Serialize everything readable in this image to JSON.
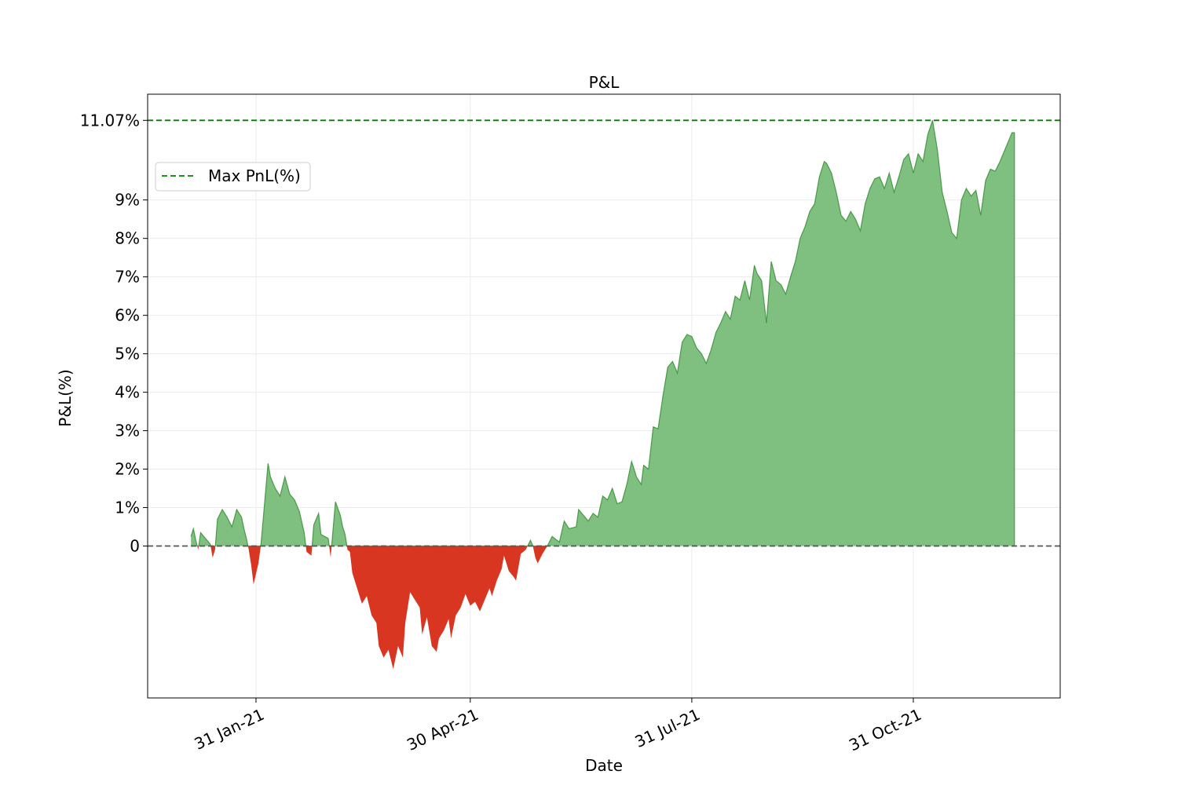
{
  "chart_data": {
    "type": "area",
    "title": "P&L",
    "xlabel": "Date",
    "ylabel": "P&L(%)",
    "x_tick_labels": [
      "31 Jan-21",
      "30 Apr-21",
      "31 Jul-21",
      "31 Oct-21"
    ],
    "x_tick_dates": [
      "2021-01-31",
      "2021-04-30",
      "2021-07-31",
      "2021-10-31"
    ],
    "x_range": [
      "2020-12-17",
      "2021-12-31"
    ],
    "y_tick_labels": [
      "11.07%",
      "9%",
      "8%",
      "7%",
      "6%",
      "5%",
      "4%",
      "3%",
      "2%",
      "1%",
      "0"
    ],
    "y_tick_values": [
      11.07,
      9,
      8,
      7,
      6,
      5,
      4,
      3,
      2,
      1,
      0
    ],
    "ylim": [
      -3.95,
      11.75
    ],
    "grid": true,
    "legend_position": "upper-left",
    "max_pnl": 11.07,
    "baseline": 0,
    "colors": {
      "positive_fill": "#7fbf7f",
      "positive_line": "#2e8b2e",
      "negative_fill": "#d93622",
      "max_line": "#008000",
      "zero_line": "#555555",
      "grid": "#ebebeb"
    },
    "series": [
      {
        "name": "Max PnL(%)",
        "style": "dashed",
        "values": [
          [
            0,
            11.07
          ]
        ]
      },
      {
        "values": [
          [
            "2021-01-04",
            0.25
          ],
          [
            "2021-01-05",
            0.45
          ],
          [
            "2021-01-06",
            0.15
          ],
          [
            "2021-01-07",
            -0.1
          ],
          [
            "2021-01-08",
            0.35
          ],
          [
            "2021-01-10",
            0.2
          ],
          [
            "2021-01-12",
            0.05
          ],
          [
            "2021-01-13",
            -0.3
          ],
          [
            "2021-01-14",
            -0.1
          ],
          [
            "2021-01-15",
            0.7
          ],
          [
            "2021-01-17",
            0.95
          ],
          [
            "2021-01-19",
            0.75
          ],
          [
            "2021-01-21",
            0.5
          ],
          [
            "2021-01-23",
            0.95
          ],
          [
            "2021-01-25",
            0.75
          ],
          [
            "2021-01-26",
            0.45
          ],
          [
            "2021-01-27",
            0.2
          ],
          [
            "2021-01-28",
            -0.1
          ],
          [
            "2021-01-29",
            -0.5
          ],
          [
            "2021-01-30",
            -1.0
          ],
          [
            "2021-02-01",
            -0.45
          ],
          [
            "2021-02-02",
            0.0
          ],
          [
            "2021-02-03",
            0.7
          ],
          [
            "2021-02-05",
            2.15
          ],
          [
            "2021-02-06",
            1.8
          ],
          [
            "2021-02-08",
            1.5
          ],
          [
            "2021-02-10",
            1.3
          ],
          [
            "2021-02-12",
            1.8
          ],
          [
            "2021-02-14",
            1.35
          ],
          [
            "2021-02-16",
            1.2
          ],
          [
            "2021-02-18",
            0.9
          ],
          [
            "2021-02-20",
            0.35
          ],
          [
            "2021-02-21",
            -0.15
          ],
          [
            "2021-02-23",
            -0.25
          ],
          [
            "2021-02-24",
            0.55
          ],
          [
            "2021-02-26",
            0.85
          ],
          [
            "2021-02-27",
            0.3
          ],
          [
            "2021-03-02",
            0.2
          ],
          [
            "2021-03-03",
            -0.3
          ],
          [
            "2021-03-05",
            1.15
          ],
          [
            "2021-03-07",
            0.8
          ],
          [
            "2021-03-08",
            0.5
          ],
          [
            "2021-03-09",
            0.3
          ],
          [
            "2021-03-10",
            -0.1
          ],
          [
            "2021-03-11",
            -0.15
          ],
          [
            "2021-03-12",
            -0.7
          ],
          [
            "2021-03-14",
            -1.1
          ],
          [
            "2021-03-16",
            -1.5
          ],
          [
            "2021-03-18",
            -1.3
          ],
          [
            "2021-03-20",
            -1.8
          ],
          [
            "2021-03-22",
            -2.0
          ],
          [
            "2021-03-23",
            -2.6
          ],
          [
            "2021-03-25",
            -2.9
          ],
          [
            "2021-03-27",
            -2.7
          ],
          [
            "2021-03-29",
            -3.2
          ],
          [
            "2021-03-31",
            -2.6
          ],
          [
            "2021-04-02",
            -2.9
          ],
          [
            "2021-04-03",
            -2.0
          ],
          [
            "2021-04-05",
            -1.2
          ],
          [
            "2021-04-07",
            -1.4
          ],
          [
            "2021-04-09",
            -1.6
          ],
          [
            "2021-04-10",
            -2.3
          ],
          [
            "2021-04-12",
            -1.85
          ],
          [
            "2021-04-14",
            -2.6
          ],
          [
            "2021-04-16",
            -2.75
          ],
          [
            "2021-04-17",
            -2.4
          ],
          [
            "2021-04-19",
            -2.2
          ],
          [
            "2021-04-21",
            -1.9
          ],
          [
            "2021-04-22",
            -2.4
          ],
          [
            "2021-04-24",
            -1.8
          ],
          [
            "2021-04-26",
            -1.6
          ],
          [
            "2021-04-28",
            -1.25
          ],
          [
            "2021-04-30",
            -1.55
          ],
          [
            "2021-05-02",
            -1.45
          ],
          [
            "2021-05-04",
            -1.7
          ],
          [
            "2021-05-06",
            -1.4
          ],
          [
            "2021-05-08",
            -1.1
          ],
          [
            "2021-05-09",
            -1.3
          ],
          [
            "2021-05-11",
            -0.9
          ],
          [
            "2021-05-13",
            -0.6
          ],
          [
            "2021-05-14",
            -0.25
          ],
          [
            "2021-05-16",
            -0.65
          ],
          [
            "2021-05-18",
            -0.8
          ],
          [
            "2021-05-19",
            -0.9
          ],
          [
            "2021-05-21",
            -0.2
          ],
          [
            "2021-05-23",
            -0.1
          ],
          [
            "2021-05-25",
            0.15
          ],
          [
            "2021-05-26",
            0.0
          ],
          [
            "2021-05-27",
            -0.3
          ],
          [
            "2021-05-28",
            -0.45
          ],
          [
            "2021-05-30",
            -0.2
          ],
          [
            "2021-06-01",
            0.0
          ],
          [
            "2021-06-03",
            0.25
          ],
          [
            "2021-06-06",
            0.1
          ],
          [
            "2021-06-08",
            0.65
          ],
          [
            "2021-06-10",
            0.45
          ],
          [
            "2021-06-13",
            0.5
          ],
          [
            "2021-06-14",
            0.95
          ],
          [
            "2021-06-16",
            0.8
          ],
          [
            "2021-06-18",
            0.65
          ],
          [
            "2021-06-20",
            0.85
          ],
          [
            "2021-06-22",
            0.75
          ],
          [
            "2021-06-24",
            1.3
          ],
          [
            "2021-06-26",
            1.2
          ],
          [
            "2021-06-28",
            1.5
          ],
          [
            "2021-06-30",
            1.1
          ],
          [
            "2021-07-02",
            1.15
          ],
          [
            "2021-07-04",
            1.6
          ],
          [
            "2021-07-06",
            2.2
          ],
          [
            "2021-07-08",
            1.8
          ],
          [
            "2021-07-10",
            1.6
          ],
          [
            "2021-07-11",
            2.1
          ],
          [
            "2021-07-13",
            2.0
          ],
          [
            "2021-07-15",
            3.1
          ],
          [
            "2021-07-17",
            3.05
          ],
          [
            "2021-07-19",
            3.9
          ],
          [
            "2021-07-21",
            4.65
          ],
          [
            "2021-07-23",
            4.8
          ],
          [
            "2021-07-25",
            4.5
          ],
          [
            "2021-07-27",
            5.3
          ],
          [
            "2021-07-29",
            5.5
          ],
          [
            "2021-07-31",
            5.45
          ],
          [
            "2021-08-02",
            5.15
          ],
          [
            "2021-08-04",
            5.0
          ],
          [
            "2021-08-06",
            4.75
          ],
          [
            "2021-08-08",
            5.1
          ],
          [
            "2021-08-10",
            5.55
          ],
          [
            "2021-08-12",
            5.8
          ],
          [
            "2021-08-14",
            6.1
          ],
          [
            "2021-08-16",
            5.9
          ],
          [
            "2021-08-18",
            6.5
          ],
          [
            "2021-08-20",
            6.4
          ],
          [
            "2021-08-22",
            6.9
          ],
          [
            "2021-08-24",
            6.4
          ],
          [
            "2021-08-26",
            7.3
          ],
          [
            "2021-08-27",
            7.1
          ],
          [
            "2021-08-29",
            6.9
          ],
          [
            "2021-08-31",
            5.8
          ],
          [
            "2021-09-02",
            7.4
          ],
          [
            "2021-09-04",
            6.9
          ],
          [
            "2021-09-06",
            6.8
          ],
          [
            "2021-09-08",
            6.55
          ],
          [
            "2021-09-10",
            7.0
          ],
          [
            "2021-09-12",
            7.4
          ],
          [
            "2021-09-14",
            8.0
          ],
          [
            "2021-09-16",
            8.3
          ],
          [
            "2021-09-18",
            8.7
          ],
          [
            "2021-09-20",
            8.9
          ],
          [
            "2021-09-22",
            9.6
          ],
          [
            "2021-09-24",
            10.0
          ],
          [
            "2021-09-25",
            9.95
          ],
          [
            "2021-09-27",
            9.7
          ],
          [
            "2021-09-29",
            9.2
          ],
          [
            "2021-10-01",
            8.6
          ],
          [
            "2021-10-03",
            8.45
          ],
          [
            "2021-10-05",
            8.7
          ],
          [
            "2021-10-07",
            8.5
          ],
          [
            "2021-10-09",
            8.2
          ],
          [
            "2021-10-11",
            8.9
          ],
          [
            "2021-10-13",
            9.3
          ],
          [
            "2021-10-15",
            9.55
          ],
          [
            "2021-10-17",
            9.6
          ],
          [
            "2021-10-19",
            9.3
          ],
          [
            "2021-10-21",
            9.7
          ],
          [
            "2021-10-23",
            9.2
          ],
          [
            "2021-10-25",
            9.6
          ],
          [
            "2021-10-27",
            10.05
          ],
          [
            "2021-10-29",
            10.2
          ],
          [
            "2021-10-31",
            9.7
          ],
          [
            "2021-11-02",
            10.2
          ],
          [
            "2021-11-04",
            10.0
          ],
          [
            "2021-11-06",
            10.7
          ],
          [
            "2021-11-08",
            11.07
          ],
          [
            "2021-11-10",
            10.3
          ],
          [
            "2021-11-12",
            9.2
          ],
          [
            "2021-11-14",
            8.7
          ],
          [
            "2021-11-16",
            8.15
          ],
          [
            "2021-11-18",
            8.0
          ],
          [
            "2021-11-20",
            9.0
          ],
          [
            "2021-11-22",
            9.3
          ],
          [
            "2021-11-24",
            9.1
          ],
          [
            "2021-11-26",
            9.25
          ],
          [
            "2021-11-28",
            8.6
          ],
          [
            "2021-11-30",
            9.5
          ],
          [
            "2021-12-02",
            9.8
          ],
          [
            "2021-12-04",
            9.75
          ],
          [
            "2021-12-06",
            10.0
          ],
          [
            "2021-12-08",
            10.3
          ],
          [
            "2021-12-10",
            10.6
          ],
          [
            "2021-12-11",
            10.75
          ],
          [
            "2021-12-12",
            10.75
          ],
          [
            "2021-12-12",
            0.0
          ]
        ]
      }
    ]
  }
}
